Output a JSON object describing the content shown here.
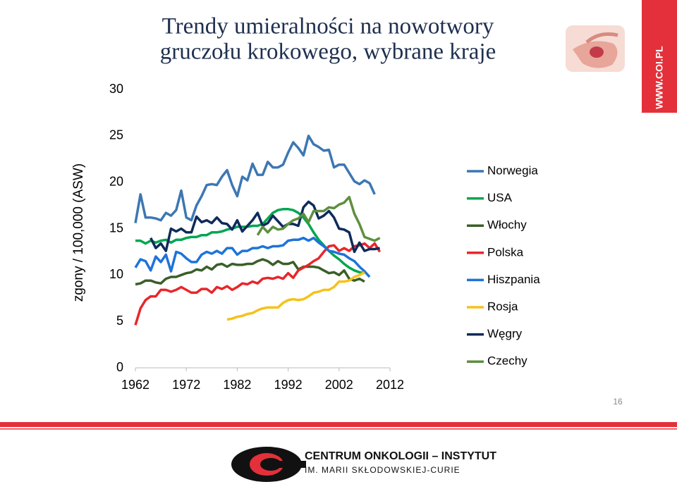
{
  "chart_data": {
    "type": "line",
    "title": [
      "Trendy umieralności na nowotwory",
      "gruczołu krokowego, wybrane kraje"
    ],
    "ylabel": "zgony / 100,000 (ASW)",
    "x": [
      1962,
      1963,
      1964,
      1965,
      1966,
      1967,
      1968,
      1969,
      1970,
      1971,
      1972,
      1973,
      1974,
      1975,
      1976,
      1977,
      1978,
      1979,
      1980,
      1981,
      1982,
      1983,
      1984,
      1985,
      1986,
      1987,
      1988,
      1989,
      1990,
      1991,
      1992,
      1993,
      1994,
      1995,
      1996,
      1997,
      1998,
      1999,
      2000,
      2001,
      2002,
      2003,
      2004,
      2005,
      2006,
      2007,
      2008,
      2009,
      2010
    ],
    "xlim": [
      1962,
      2012
    ],
    "xticks": [
      1962,
      1972,
      1982,
      1992,
      2002,
      2012
    ],
    "ylim": [
      0,
      30
    ],
    "yticks": [
      0,
      5,
      10,
      15,
      20,
      25,
      30
    ],
    "grid": false,
    "legend_position": "right",
    "series": [
      {
        "name": "Norwegia",
        "color": "#3d77b3",
        "values": [
          15.6,
          18.7,
          16.2,
          16.2,
          16.1,
          15.9,
          16.7,
          16.4,
          17,
          19.1,
          16.2,
          15.9,
          17.5,
          18.5,
          19.7,
          19.8,
          19.7,
          20.6,
          21.3,
          19.7,
          18.5,
          20.6,
          20.2,
          22,
          20.8,
          20.8,
          22.2,
          21.6,
          21.6,
          21.9,
          23.2,
          24.3,
          23.7,
          22.9,
          25,
          24.1,
          23.8,
          23.4,
          23.5,
          21.6,
          21.9,
          21.9,
          21,
          20.1,
          19.8,
          20.2,
          19.9,
          18.7,
          null
        ]
      },
      {
        "name": "USA",
        "color": "#00a651",
        "values": [
          13.7,
          13.7,
          13.4,
          13.7,
          13.5,
          13.7,
          13.8,
          13.5,
          13.8,
          13.8,
          14,
          14.1,
          14.1,
          14.3,
          14.3,
          14.6,
          14.6,
          14.7,
          14.9,
          15,
          15.2,
          15.2,
          15.2,
          15.3,
          15.3,
          15.5,
          16.1,
          16.7,
          17,
          17.1,
          17.1,
          17,
          16.7,
          16.2,
          15.5,
          14.6,
          13.8,
          13.2,
          12.6,
          12.1,
          11.7,
          11.2,
          10.8,
          10.5,
          10.3,
          10.2,
          null,
          null,
          null
        ]
      },
      {
        "name": "Włochy",
        "color": "#3a5f28",
        "values": [
          9,
          9.1,
          9.4,
          9.4,
          9.2,
          9.1,
          9.6,
          9.8,
          9.8,
          10,
          10.2,
          10.3,
          10.6,
          10.5,
          10.9,
          10.6,
          11.1,
          11.2,
          10.9,
          11.2,
          11.1,
          11.1,
          11.2,
          11.2,
          11.5,
          11.7,
          11.5,
          11.1,
          11.5,
          11.2,
          11.2,
          11.4,
          10.6,
          10.9,
          10.9,
          10.9,
          10.8,
          10.5,
          10.2,
          10.3,
          10,
          10.5,
          9.6,
          9.4,
          9.6,
          9.3,
          null,
          null,
          null
        ]
      },
      {
        "name": "Polska",
        "color": "#e8262b",
        "values": [
          4.6,
          6.4,
          7.3,
          7.7,
          7.7,
          8.4,
          8.4,
          8.2,
          8.4,
          8.7,
          8.4,
          8.1,
          8.1,
          8.5,
          8.5,
          8.1,
          8.7,
          8.5,
          8.8,
          8.4,
          8.7,
          9.1,
          9,
          9.3,
          9.1,
          9.6,
          9.7,
          9.6,
          9.8,
          9.6,
          10.2,
          9.7,
          10.5,
          10.8,
          11.1,
          11.5,
          11.8,
          12.5,
          13.1,
          13.2,
          12.6,
          12.9,
          12.6,
          13.1,
          13.2,
          13.4,
          12.9,
          13.4,
          12.5
        ]
      },
      {
        "name": "Hiszpania",
        "color": "#1e73d8",
        "values": [
          10.8,
          11.7,
          11.5,
          10.5,
          12,
          11.4,
          12.2,
          10.4,
          12.5,
          12.3,
          11.8,
          11.4,
          11.4,
          12.2,
          12.5,
          12.3,
          12.6,
          12.3,
          12.9,
          12.9,
          12.2,
          12.6,
          12.6,
          12.9,
          12.9,
          13.1,
          12.9,
          13.1,
          13.1,
          13.2,
          13.7,
          13.8,
          13.8,
          14,
          13.7,
          14,
          13.5,
          13.1,
          12.6,
          12.5,
          12.3,
          12.2,
          11.8,
          11.5,
          10.9,
          10.4,
          9.8,
          null,
          null
        ]
      },
      {
        "name": "Rosja",
        "color": "#f6c21a",
        "values": [
          null,
          null,
          null,
          null,
          null,
          null,
          null,
          null,
          null,
          null,
          null,
          null,
          null,
          null,
          null,
          null,
          null,
          null,
          5.2,
          5.3,
          5.5,
          5.6,
          5.8,
          5.9,
          6.2,
          6.4,
          6.5,
          6.5,
          6.5,
          7,
          7.3,
          7.4,
          7.3,
          7.4,
          7.7,
          8.1,
          8.2,
          8.4,
          8.4,
          8.7,
          9.3,
          9.3,
          9.4,
          9.8,
          10,
          10.3,
          null,
          null,
          null
        ]
      },
      {
        "name": "Węgry",
        "color": "#0f2a5a",
        "values": [
          null,
          null,
          null,
          14,
          12.9,
          13.4,
          12.6,
          15,
          14.7,
          15,
          14.6,
          14.6,
          16.3,
          15.7,
          15.9,
          15.6,
          16.2,
          15.6,
          15.5,
          14.9,
          15.9,
          14.7,
          15.3,
          15.9,
          16.7,
          15.3,
          15.6,
          16.4,
          15.8,
          15.2,
          15.5,
          15.5,
          15.3,
          17.3,
          17.9,
          17.5,
          16.1,
          16.4,
          16.9,
          16.2,
          15,
          14.9,
          14.6,
          12.5,
          13.5,
          12.6,
          12.8,
          12.8,
          12.9
        ]
      },
      {
        "name": "Czechy",
        "color": "#5e8f3f",
        "values": [
          null,
          null,
          null,
          null,
          null,
          null,
          null,
          null,
          null,
          null,
          null,
          null,
          null,
          null,
          null,
          null,
          null,
          null,
          null,
          null,
          null,
          null,
          null,
          null,
          14.3,
          15.2,
          14.6,
          15.2,
          14.9,
          15,
          15.5,
          15.9,
          16.1,
          16.6,
          15.7,
          16.9,
          16.9,
          16.9,
          17.3,
          17.2,
          17.6,
          17.8,
          18.4,
          16.6,
          15.5,
          14.1,
          13.9,
          13.7,
          14
        ]
      }
    ]
  },
  "slide": {
    "website": "WWW.COI.PL",
    "page_number": "16",
    "institute": "CENTRUM ONKOLOGII – INSTYTUT",
    "institute_subtitle": "IM. MARII SKŁODOWSKIEJ-CURIE"
  }
}
